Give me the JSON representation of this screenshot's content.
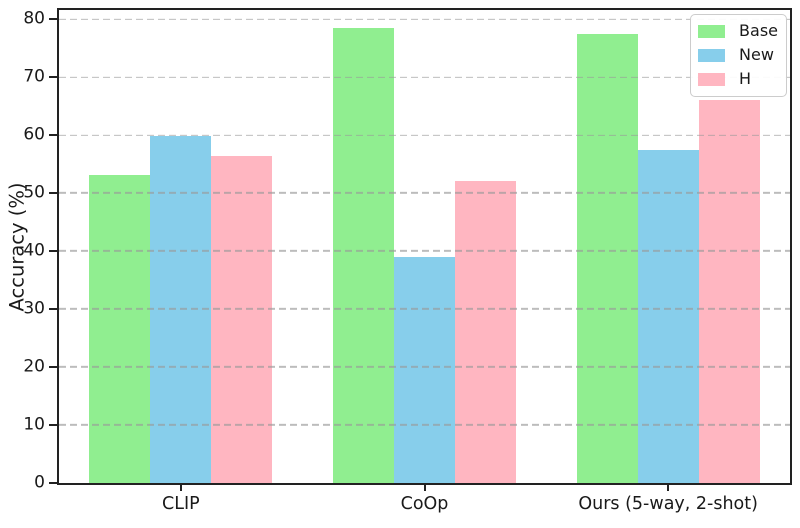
{
  "chart_data": {
    "type": "bar",
    "title": "",
    "xlabel": "",
    "ylabel": "Accuracy (%)",
    "categories": [
      "CLIP",
      "CoOp",
      "Ours (5-way, 2-shot)"
    ],
    "series": [
      {
        "name": "Base",
        "color": "#90EE90",
        "values": [
          53.2,
          78.5,
          77.4
        ]
      },
      {
        "name": "New",
        "color": "#87CEEB",
        "values": [
          59.9,
          39.0,
          57.5
        ]
      },
      {
        "name": "H",
        "color": "#FFB6C1",
        "values": [
          56.4,
          52.1,
          66.0
        ]
      }
    ],
    "ylim": [
      0,
      81.6
    ],
    "yticks": [
      0,
      10,
      20,
      30,
      40,
      50,
      60,
      70,
      80
    ],
    "grid": "horizontal-dashed",
    "grid_on_top_of_bars": true,
    "grid_color": "#999999",
    "axis_color": "#222222",
    "legend_position": "upper-right",
    "legend_border_color": "#cccccc",
    "background_color": "#ffffff"
  }
}
